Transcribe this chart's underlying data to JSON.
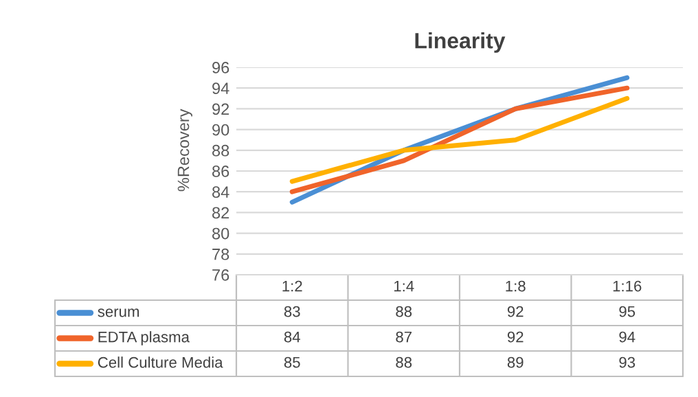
{
  "chart_data": {
    "type": "line",
    "title": "Linearity",
    "ylabel": "%Recovery",
    "categories": [
      "1:2",
      "1:4",
      "1:8",
      "1:16"
    ],
    "series": [
      {
        "name": "serum",
        "color": "#4a8fd4",
        "values": [
          83,
          88,
          92,
          95
        ]
      },
      {
        "name": "EDTA plasma",
        "color": "#f0642a",
        "values": [
          84,
          87,
          92,
          94
        ]
      },
      {
        "name": "Cell Culture Media",
        "color": "#ffb000",
        "values": [
          85,
          88,
          89,
          93
        ]
      }
    ],
    "ylim": [
      76,
      96
    ],
    "yticks": [
      76,
      78,
      80,
      82,
      84,
      86,
      88,
      90,
      92,
      94,
      96
    ],
    "grid": "y",
    "legend": "bottom",
    "data_labels": true
  }
}
